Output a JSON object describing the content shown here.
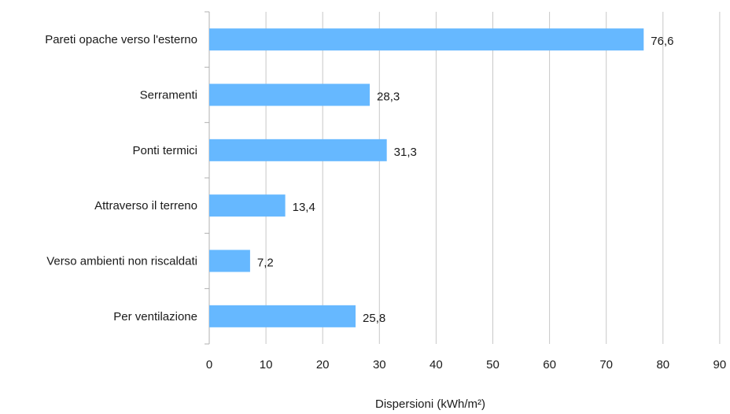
{
  "chart_data": {
    "type": "bar",
    "orientation": "horizontal",
    "categories": [
      "Pareti opache verso l'esterno",
      "Serramenti",
      "Ponti termici",
      "Attraverso il terreno",
      "Verso ambienti non riscaldati",
      "Per ventilazione"
    ],
    "values": [
      76.6,
      28.3,
      31.3,
      13.4,
      7.2,
      25.8
    ],
    "data_labels": [
      "76,6",
      "28,3",
      "31,3",
      "13,4",
      "7,2",
      "25,8"
    ],
    "xlabel": "Dispersioni (kWh/m²)",
    "ylabel": "",
    "xlim": [
      0,
      90
    ],
    "xticks": [
      0,
      10,
      20,
      30,
      40,
      50,
      60,
      70,
      80,
      90
    ],
    "xtick_labels": [
      "0",
      "10",
      "20",
      "30",
      "40",
      "50",
      "60",
      "70",
      "80",
      "90"
    ],
    "grid": "vertical",
    "bar_color": "#66b8ff",
    "legend": "none"
  }
}
